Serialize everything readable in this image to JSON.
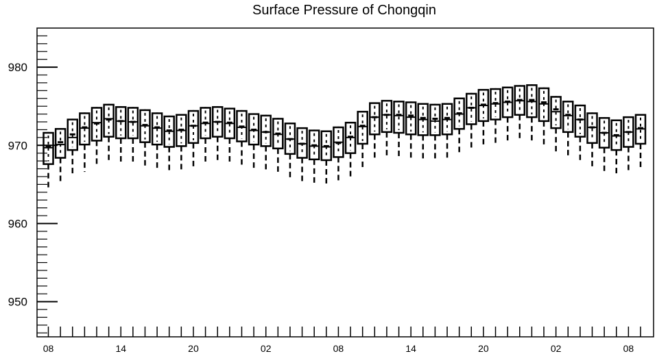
{
  "chart_data": {
    "type": "boxplot",
    "title": "Surface Pressure of Chongqin",
    "xlabel": "",
    "ylabel": "",
    "ylim": [
      945.5,
      985
    ],
    "y_ticks": [
      950,
      960,
      970,
      980
    ],
    "x_tick_labels": [
      "08",
      "14",
      "20",
      "02",
      "08",
      "14",
      "20",
      "02",
      "08"
    ],
    "grid": false,
    "series": [
      {
        "q1": [
          967.6,
          968.4,
          969.4,
          970.1,
          970.6,
          971.1,
          970.9,
          970.9,
          970.4,
          970.1,
          969.8,
          969.9,
          970.3,
          970.9,
          971.1,
          970.9,
          970.5,
          970.1,
          969.9,
          969.6,
          968.9,
          968.4,
          968.2,
          968.1,
          968.5,
          969.0,
          970.2,
          971.4,
          971.7,
          971.6,
          971.4,
          971.3,
          971.3,
          971.4,
          972.1,
          972.7,
          973.1,
          973.3,
          973.6,
          973.9,
          973.6,
          973.1,
          972.2,
          971.7,
          971.1,
          970.3,
          969.7,
          969.4,
          969.8,
          970.2
        ],
        "median": [
          969.7,
          970.1,
          971.0,
          972.2,
          972.9,
          973.4,
          973.1,
          973.0,
          972.5,
          972.2,
          971.8,
          971.9,
          972.5,
          972.8,
          973.0,
          972.8,
          972.3,
          971.9,
          971.7,
          971.4,
          970.8,
          970.2,
          969.9,
          969.8,
          970.4,
          971.0,
          972.4,
          973.6,
          973.9,
          973.8,
          973.6,
          973.3,
          973.1,
          973.3,
          974.0,
          974.8,
          975.1,
          975.3,
          975.5,
          975.7,
          975.6,
          975.3,
          974.3,
          973.8,
          973.3,
          972.3,
          971.6,
          971.2,
          971.7,
          972.1
        ],
        "mean": [
          969.9,
          970.4,
          971.4,
          972.3,
          972.8,
          973.3,
          973.1,
          973.0,
          972.6,
          972.3,
          971.9,
          972.0,
          972.5,
          972.9,
          973.0,
          972.9,
          972.4,
          972.0,
          971.7,
          971.5,
          970.8,
          970.2,
          970.0,
          969.9,
          970.3,
          971.1,
          972.5,
          973.6,
          973.9,
          973.9,
          973.8,
          973.5,
          973.4,
          973.5,
          974.1,
          974.8,
          975.2,
          975.4,
          975.6,
          975.8,
          975.8,
          975.5,
          974.6,
          973.9,
          973.3,
          972.3,
          971.6,
          971.3,
          971.7,
          972.2
        ],
        "q3": [
          971.6,
          972.1,
          973.3,
          974.1,
          974.8,
          975.2,
          974.9,
          974.8,
          974.5,
          974.1,
          973.7,
          973.9,
          974.4,
          974.8,
          974.9,
          974.7,
          974.4,
          974.0,
          973.8,
          973.4,
          972.8,
          972.2,
          971.9,
          971.8,
          972.3,
          972.9,
          974.3,
          975.4,
          975.7,
          975.6,
          975.5,
          975.3,
          975.2,
          975.3,
          976.0,
          976.6,
          977.1,
          977.2,
          977.4,
          977.6,
          977.7,
          977.3,
          976.2,
          975.6,
          975.1,
          974.1,
          973.5,
          973.2,
          973.6,
          973.9
        ],
        "whisker_low": [
          964.4,
          965.1,
          966.2,
          966.6,
          967.2,
          967.7,
          967.6,
          967.6,
          967.3,
          966.9,
          966.6,
          966.7,
          967.1,
          967.7,
          967.9,
          967.6,
          967.2,
          966.9,
          966.6,
          966.4,
          965.7,
          965.2,
          965.0,
          964.9,
          965.4,
          965.9,
          967.1,
          968.2,
          968.5,
          968.4,
          968.2,
          968.0,
          968.1,
          968.2,
          968.8,
          969.6,
          970.0,
          970.2,
          970.5,
          970.7,
          970.5,
          970.1,
          969.1,
          968.5,
          967.9,
          967.1,
          966.4,
          966.2,
          966.6,
          966.9
        ],
        "whisker_high": [
          971.7,
          972.2,
          973.4,
          974.2,
          974.9,
          975.3,
          975.0,
          974.9,
          974.6,
          974.2,
          973.8,
          974.0,
          974.5,
          974.9,
          975.0,
          974.8,
          974.5,
          974.1,
          973.9,
          973.5,
          972.9,
          972.3,
          972.0,
          971.9,
          972.4,
          973.0,
          974.4,
          975.5,
          975.8,
          975.7,
          975.6,
          975.4,
          975.3,
          975.4,
          976.1,
          976.7,
          977.2,
          977.3,
          977.5,
          977.7,
          977.8,
          977.4,
          976.3,
          975.7,
          975.2,
          974.2,
          973.6,
          973.3,
          973.7,
          974.0
        ]
      }
    ]
  }
}
